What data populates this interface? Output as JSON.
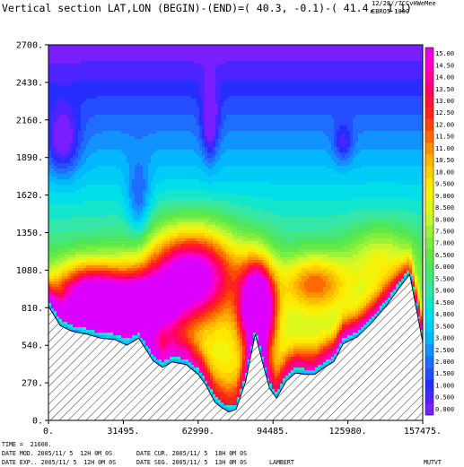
{
  "header": {
    "title": "Vertical section LAT,LON (BEGIN)-(END)=( 40.3, -0.1)-( 41.4,  1.1)",
    "date": "12/28//7C",
    "model": "EBRO5 1800",
    "var": "CvHWeMee"
  },
  "footer": {
    "time_label": "TIME =",
    "time_value": "21600.",
    "date_mod": "DATE MOD. 2005/11/ 5  12H 0M 0S",
    "date_cur": "DATE CUR. 2005/11/ 5  18H 0M 0S",
    "date_exp": "DATE EXP.. 2005/11/ 5  12H 0M 0S",
    "date_seg": "DATE SEG. 2005/11/ 5  13H 0M 0S",
    "projection": "LAMBERT",
    "field": "MUTVT"
  },
  "chart_data": {
    "type": "heatmap",
    "x_ticks": [
      "0.",
      "31495.",
      "62990.",
      "94485.",
      "125980.",
      "157475."
    ],
    "y_ticks": [
      "0.",
      "270.",
      "540.",
      "810.",
      "1080.",
      "1350.",
      "1620.",
      "1890.",
      "2160.",
      "2430.",
      "2700."
    ],
    "xlim": [
      0,
      157475
    ],
    "ylim": [
      0,
      2700
    ],
    "colorbar_labels": [
      "0.000",
      "0.500",
      "1.000",
      "1.500",
      "2.000",
      "2.500",
      "3.000",
      "3.500",
      "4.000",
      "4.500",
      "5.000",
      "5.500",
      "6.000",
      "6.500",
      "7.000",
      "7.500",
      "8.000",
      "8.500",
      "9.000",
      "9.500",
      "10.00",
      "10.50",
      "11.00",
      "11.50",
      "12.00",
      "12.50",
      "13.00",
      "13.50",
      "14.00",
      "14.50",
      "15.00"
    ],
    "colorbar_range": [
      0,
      15.5
    ],
    "terrain": {
      "x": [
        0,
        5000,
        10000,
        16000,
        22000,
        28000,
        33000,
        38000,
        44000,
        48000,
        52000,
        58000,
        63000,
        66000,
        70000,
        73000,
        76000,
        79000,
        83000,
        87000,
        90000,
        93000,
        96000,
        100000,
        104000,
        108000,
        112000,
        116000,
        120000,
        124000,
        130000,
        136000,
        142000,
        148000,
        152000,
        157475
      ],
      "y": [
        820,
        680,
        640,
        620,
        590,
        580,
        540,
        590,
        430,
        380,
        420,
        400,
        330,
        260,
        130,
        90,
        60,
        80,
        280,
        620,
        420,
        230,
        160,
        280,
        340,
        330,
        330,
        380,
        420,
        550,
        600,
        700,
        820,
        960,
        1050,
        560
      ]
    },
    "fields": [
      {
        "x": 60000,
        "y": 1050,
        "value": 10.5,
        "sx": 20000,
        "sy": 330
      },
      {
        "x": 18000,
        "y": 900,
        "value": 10.0,
        "sx": 16000,
        "sy": 230
      },
      {
        "x": 88000,
        "y": 800,
        "value": 13.0,
        "sx": 7000,
        "sy": 320
      },
      {
        "x": 40000,
        "y": 800,
        "value": 9.0,
        "sx": 14000,
        "sy": 220
      },
      {
        "x": 112000,
        "y": 990,
        "value": 5.0,
        "sx": 14000,
        "sy": 200
      },
      {
        "x": 140000,
        "y": 1150,
        "value": 3.0,
        "sx": 14000,
        "sy": 250
      },
      {
        "x": 6000,
        "y": 2000,
        "value": -3.0,
        "sx": 7000,
        "sy": 240
      },
      {
        "x": 68000,
        "y": 2140,
        "value": -3.0,
        "sx": 3500,
        "sy": 260
      },
      {
        "x": 38000,
        "y": 1550,
        "value": -2.5,
        "sx": 5000,
        "sy": 300
      },
      {
        "x": 124000,
        "y": 1990,
        "value": -2.0,
        "sx": 4000,
        "sy": 140
      }
    ]
  }
}
